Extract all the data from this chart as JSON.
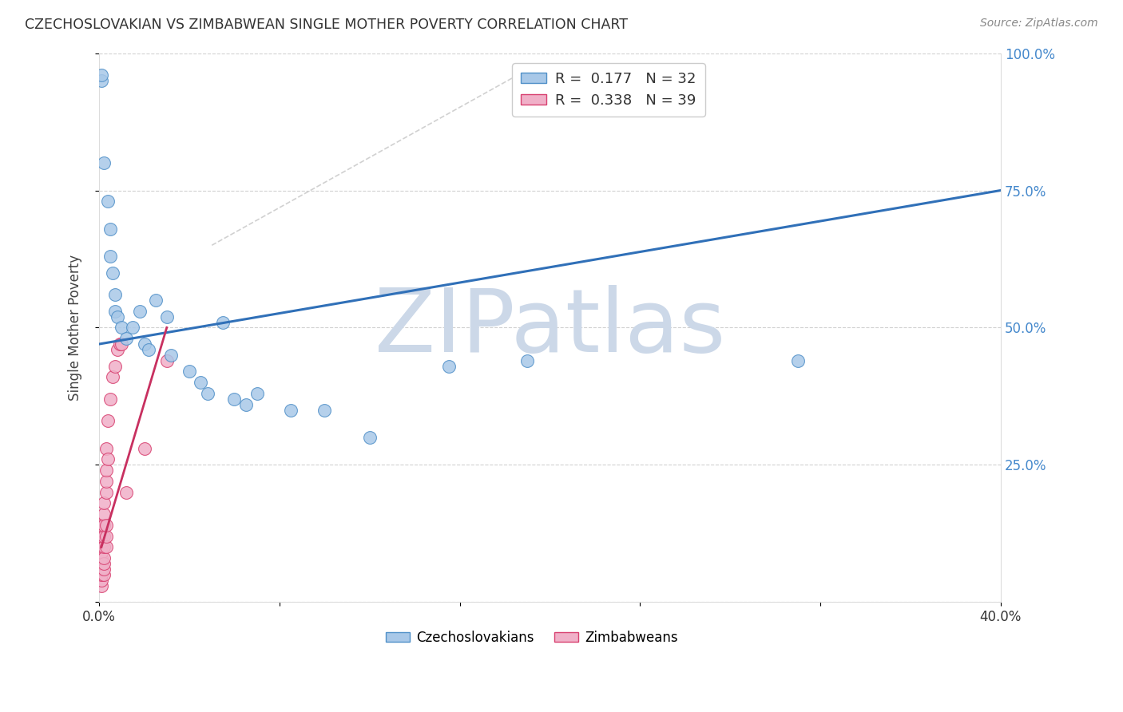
{
  "title": "CZECHOSLOVAKIAN VS ZIMBABWEAN SINGLE MOTHER POVERTY CORRELATION CHART",
  "source": "Source: ZipAtlas.com",
  "ylabel": "Single Mother Poverty",
  "xlim": [
    0.0,
    0.4
  ],
  "ylim": [
    0.0,
    1.0
  ],
  "xticks": [
    0.0,
    0.08,
    0.16,
    0.24,
    0.32,
    0.4
  ],
  "xtick_labels": [
    "0.0%",
    "",
    "",
    "",
    "",
    "40.0%"
  ],
  "yticks": [
    0.0,
    0.25,
    0.5,
    0.75,
    1.0
  ],
  "ytick_labels_right": [
    "",
    "25.0%",
    "50.0%",
    "75.0%",
    "100.0%"
  ],
  "blue_color": "#a8c8e8",
  "pink_color": "#f0b0c8",
  "blue_edge_color": "#5090c8",
  "pink_edge_color": "#d84070",
  "blue_line_color": "#3070b8",
  "pink_line_color": "#c83060",
  "blue_points_x": [
    0.001,
    0.001,
    0.002,
    0.004,
    0.005,
    0.005,
    0.006,
    0.007,
    0.007,
    0.008,
    0.01,
    0.012,
    0.015,
    0.018,
    0.02,
    0.022,
    0.025,
    0.03,
    0.032,
    0.04,
    0.045,
    0.048,
    0.055,
    0.06,
    0.065,
    0.07,
    0.085,
    0.1,
    0.12,
    0.155,
    0.19,
    0.31
  ],
  "blue_points_y": [
    0.95,
    0.96,
    0.8,
    0.73,
    0.68,
    0.63,
    0.6,
    0.56,
    0.53,
    0.52,
    0.5,
    0.48,
    0.5,
    0.53,
    0.47,
    0.46,
    0.55,
    0.52,
    0.45,
    0.42,
    0.4,
    0.38,
    0.51,
    0.37,
    0.36,
    0.38,
    0.35,
    0.35,
    0.3,
    0.43,
    0.44,
    0.44
  ],
  "pink_points_x": [
    0.001,
    0.001,
    0.001,
    0.001,
    0.001,
    0.001,
    0.001,
    0.001,
    0.001,
    0.001,
    0.001,
    0.001,
    0.002,
    0.002,
    0.002,
    0.002,
    0.002,
    0.002,
    0.002,
    0.002,
    0.002,
    0.003,
    0.003,
    0.003,
    0.003,
    0.003,
    0.003,
    0.003,
    0.004,
    0.004,
    0.005,
    0.006,
    0.007,
    0.008,
    0.009,
    0.01,
    0.012,
    0.02,
    0.03
  ],
  "pink_points_y": [
    0.03,
    0.04,
    0.05,
    0.06,
    0.07,
    0.08,
    0.09,
    0.1,
    0.11,
    0.12,
    0.13,
    0.14,
    0.05,
    0.06,
    0.07,
    0.08,
    0.1,
    0.12,
    0.14,
    0.16,
    0.18,
    0.1,
    0.12,
    0.14,
    0.2,
    0.22,
    0.24,
    0.28,
    0.26,
    0.33,
    0.37,
    0.41,
    0.43,
    0.46,
    0.47,
    0.47,
    0.2,
    0.28,
    0.44
  ],
  "blue_line_x0": 0.0,
  "blue_line_y0": 0.47,
  "blue_line_x1": 0.4,
  "blue_line_y1": 0.75,
  "pink_line_x0": 0.001,
  "pink_line_y0": 0.1,
  "pink_line_x1": 0.03,
  "pink_line_y1": 0.5,
  "diag_line_x0": 0.05,
  "diag_line_y0": 0.65,
  "diag_line_x1": 0.19,
  "diag_line_y1": 0.97,
  "watermark_text": "ZIPatlas",
  "watermark_color": "#ccd8e8",
  "bottom_legend": [
    "Czechoslovakians",
    "Zimbabweans"
  ],
  "background_color": "#ffffff",
  "grid_color": "#cccccc"
}
